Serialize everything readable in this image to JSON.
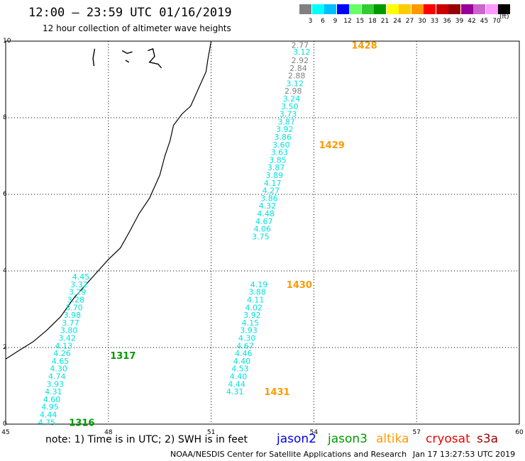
{
  "header": {
    "title": "12:00 — 23:59 UTC 01/16/2019",
    "subtitle": "12 hour collection of altimeter wave heights"
  },
  "colorbar": {
    "unit": "(ft)",
    "steps": [
      {
        "label": "3",
        "color": "#808080"
      },
      {
        "label": "6",
        "color": "#00ffff"
      },
      {
        "label": "9",
        "color": "#00bfff"
      },
      {
        "label": "12",
        "color": "#0000ff"
      },
      {
        "label": "15",
        "color": "#66ff66"
      },
      {
        "label": "18",
        "color": "#33cc33"
      },
      {
        "label": "21",
        "color": "#009900"
      },
      {
        "label": "24",
        "color": "#ffff00"
      },
      {
        "label": "27",
        "color": "#ffcc00"
      },
      {
        "label": "30",
        "color": "#ff9900"
      },
      {
        "label": "33",
        "color": "#ff0000"
      },
      {
        "label": "36",
        "color": "#cc0000"
      },
      {
        "label": "39",
        "color": "#990000"
      },
      {
        "label": "42",
        "color": "#990099"
      },
      {
        "label": "45",
        "color": "#cc66cc"
      },
      {
        "label": "70",
        "color": "#ff99ff"
      },
      {
        "label": "",
        "color": "#000000"
      }
    ]
  },
  "map": {
    "lon_range": [
      45,
      60
    ],
    "lat_range": [
      0,
      10
    ],
    "lon_ticks": [
      "45",
      "48",
      "51",
      "54",
      "57",
      "60"
    ],
    "lat_ticks": [
      "0",
      "2",
      "4",
      "6",
      "8",
      "10"
    ],
    "grid_lon": [
      48,
      51,
      54,
      57
    ],
    "grid_lat": [
      2,
      4,
      6,
      8
    ],
    "coastline": [
      [
        51.0,
        10.0
      ],
      [
        50.9,
        9.5
      ],
      [
        50.85,
        9.2
      ],
      [
        50.7,
        8.9
      ],
      [
        50.5,
        8.5
      ],
      [
        50.4,
        8.3
      ],
      [
        50.15,
        8.1
      ],
      [
        49.9,
        7.8
      ],
      [
        49.8,
        7.4
      ],
      [
        49.65,
        7.0
      ],
      [
        49.5,
        6.5
      ],
      [
        49.2,
        5.9
      ],
      [
        48.9,
        5.5
      ],
      [
        48.6,
        5.0
      ],
      [
        48.35,
        4.6
      ],
      [
        48.0,
        4.3
      ],
      [
        47.7,
        4.0
      ],
      [
        47.4,
        3.7
      ],
      [
        47.0,
        3.3
      ],
      [
        46.6,
        2.8
      ],
      [
        46.2,
        2.45
      ],
      [
        45.8,
        2.15
      ],
      [
        45.35,
        1.9
      ],
      [
        45.0,
        1.7
      ]
    ],
    "islands": [
      [
        [
          47.6,
          9.8
        ],
        [
          47.55,
          9.55
        ],
        [
          47.58,
          9.35
        ]
      ],
      [
        [
          48.4,
          9.75
        ],
        [
          48.55,
          9.68
        ],
        [
          48.7,
          9.72
        ]
      ],
      [
        [
          49.15,
          9.75
        ],
        [
          49.3,
          9.8
        ],
        [
          49.35,
          9.6
        ],
        [
          49.2,
          9.45
        ],
        [
          49.45,
          9.4
        ],
        [
          49.55,
          9.3
        ]
      ],
      [
        [
          48.5,
          9.5
        ],
        [
          48.6,
          9.45
        ]
      ]
    ],
    "passes": [
      {
        "satellite": "altika",
        "time_label": "1428",
        "time_label_pos": [
          55.1,
          9.9
        ],
        "values": [
          {
            "lon": 53.85,
            "lat": 9.9,
            "swh": "2.77",
            "color": "#808080"
          },
          {
            "lon": 53.9,
            "lat": 9.72,
            "swh": "3.12",
            "color": "#00e0e0"
          },
          {
            "lon": 53.85,
            "lat": 9.5,
            "swh": "2.92",
            "color": "#808080"
          },
          {
            "lon": 53.8,
            "lat": 9.3,
            "swh": "2.84",
            "color": "#808080"
          },
          {
            "lon": 53.75,
            "lat": 9.1,
            "swh": "2.88",
            "color": "#808080"
          },
          {
            "lon": 53.7,
            "lat": 8.9,
            "swh": "3.12",
            "color": "#00e0e0"
          },
          {
            "lon": 53.65,
            "lat": 8.7,
            "swh": "2.98",
            "color": "#808080"
          },
          {
            "lon": 53.6,
            "lat": 8.5,
            "swh": "3.24",
            "color": "#00e0e0"
          },
          {
            "lon": 53.55,
            "lat": 8.3,
            "swh": "3.50",
            "color": "#00e0e0"
          },
          {
            "lon": 53.5,
            "lat": 8.1,
            "swh": "3.73",
            "color": "#00e0e0"
          },
          {
            "lon": 53.45,
            "lat": 7.9,
            "swh": "3.87",
            "color": "#00e0e0"
          },
          {
            "lon": 53.4,
            "lat": 7.7,
            "swh": "3.92",
            "color": "#00e0e0"
          },
          {
            "lon": 53.35,
            "lat": 7.5,
            "swh": "3.86",
            "color": "#00e0e0"
          },
          {
            "lon": 53.3,
            "lat": 7.3,
            "swh": "3.60",
            "color": "#00e0e0"
          },
          {
            "lon": 53.25,
            "lat": 7.1,
            "swh": "3.63",
            "color": "#00e0e0"
          },
          {
            "lon": 53.2,
            "lat": 6.9,
            "swh": "3.85",
            "color": "#00e0e0"
          },
          {
            "lon": 53.15,
            "lat": 6.7,
            "swh": "3.87",
            "color": "#00e0e0"
          },
          {
            "lon": 53.1,
            "lat": 6.5,
            "swh": "3.89",
            "color": "#00e0e0"
          },
          {
            "lon": 53.05,
            "lat": 6.3,
            "swh": "4.17",
            "color": "#00e0e0"
          },
          {
            "lon": 53.0,
            "lat": 6.1,
            "swh": "4.27",
            "color": "#00e0e0"
          },
          {
            "lon": 52.95,
            "lat": 5.9,
            "swh": "3.86",
            "color": "#00e0e0"
          },
          {
            "lon": 52.9,
            "lat": 5.7,
            "swh": "4.32",
            "color": "#00e0e0"
          },
          {
            "lon": 52.85,
            "lat": 5.5,
            "swh": "4.48",
            "color": "#00e0e0"
          },
          {
            "lon": 52.8,
            "lat": 5.3,
            "swh": "4.67",
            "color": "#00e0e0"
          },
          {
            "lon": 52.75,
            "lat": 5.1,
            "swh": "4.06",
            "color": "#00e0e0"
          },
          {
            "lon": 52.7,
            "lat": 4.9,
            "swh": "3.75",
            "color": "#00e0e0"
          }
        ]
      },
      {
        "satellite": "altika",
        "time_label": "1429",
        "time_label_pos": [
          54.15,
          7.3
        ],
        "values": []
      },
      {
        "satellite": "altika",
        "time_label": "1430",
        "time_label_pos": [
          53.2,
          3.65
        ],
        "values": [
          {
            "lon": 52.65,
            "lat": 3.65,
            "swh": "4.19",
            "color": "#00e0e0"
          },
          {
            "lon": 52.6,
            "lat": 3.45,
            "swh": "3.88",
            "color": "#00e0e0"
          },
          {
            "lon": 52.55,
            "lat": 3.25,
            "swh": "4.11",
            "color": "#00e0e0"
          },
          {
            "lon": 52.5,
            "lat": 3.05,
            "swh": "4.02",
            "color": "#00e0e0"
          },
          {
            "lon": 52.45,
            "lat": 2.85,
            "swh": "3.92",
            "color": "#00e0e0"
          },
          {
            "lon": 52.4,
            "lat": 2.65,
            "swh": "4.15",
            "color": "#00e0e0"
          },
          {
            "lon": 52.35,
            "lat": 2.45,
            "swh": "3.93",
            "color": "#00e0e0"
          },
          {
            "lon": 52.3,
            "lat": 2.25,
            "swh": "4.30",
            "color": "#00e0e0"
          },
          {
            "lon": 52.25,
            "lat": 2.05,
            "swh": "4.67",
            "color": "#00e0e0"
          },
          {
            "lon": 52.2,
            "lat": 1.85,
            "swh": "4.46",
            "color": "#00e0e0"
          },
          {
            "lon": 52.15,
            "lat": 1.65,
            "swh": "4.40",
            "color": "#00e0e0"
          },
          {
            "lon": 52.1,
            "lat": 1.45,
            "swh": "4.53",
            "color": "#00e0e0"
          },
          {
            "lon": 52.05,
            "lat": 1.25,
            "swh": "4.40",
            "color": "#00e0e0"
          },
          {
            "lon": 52.0,
            "lat": 1.05,
            "swh": "4.44",
            "color": "#00e0e0"
          },
          {
            "lon": 51.95,
            "lat": 0.85,
            "swh": "4.31",
            "color": "#00e0e0"
          }
        ]
      },
      {
        "satellite": "altika",
        "time_label": "1431",
        "time_label_pos": [
          52.55,
          0.85
        ],
        "values": []
      },
      {
        "satellite": "jason3",
        "time_label": "1317",
        "time_label_pos": [
          48.05,
          1.8
        ],
        "values": [
          {
            "lon": 47.45,
            "lat": 3.85,
            "swh": "4.45",
            "color": "#00e0e0"
          },
          {
            "lon": 47.4,
            "lat": 3.65,
            "swh": "3.32",
            "color": "#00e0e0"
          },
          {
            "lon": 47.35,
            "lat": 3.45,
            "swh": "3.29",
            "color": "#00e0e0"
          },
          {
            "lon": 47.3,
            "lat": 3.25,
            "swh": "3.28",
            "color": "#00e0e0"
          },
          {
            "lon": 47.25,
            "lat": 3.05,
            "swh": "3.70",
            "color": "#00e0e0"
          },
          {
            "lon": 47.2,
            "lat": 2.85,
            "swh": "3.98",
            "color": "#00e0e0"
          },
          {
            "lon": 47.15,
            "lat": 2.65,
            "swh": "3.77",
            "color": "#00e0e0"
          },
          {
            "lon": 47.1,
            "lat": 2.45,
            "swh": "3.80",
            "color": "#00e0e0"
          },
          {
            "lon": 47.05,
            "lat": 2.25,
            "swh": "3.42",
            "color": "#00e0e0"
          },
          {
            "lon": 46.95,
            "lat": 2.05,
            "swh": "4.13",
            "color": "#00e0e0"
          },
          {
            "lon": 46.9,
            "lat": 1.85,
            "swh": "4.26",
            "color": "#00e0e0"
          },
          {
            "lon": 46.85,
            "lat": 1.65,
            "swh": "4.65",
            "color": "#00e0e0"
          },
          {
            "lon": 46.8,
            "lat": 1.45,
            "swh": "4.30",
            "color": "#00e0e0"
          },
          {
            "lon": 46.75,
            "lat": 1.25,
            "swh": "4.74",
            "color": "#00e0e0"
          },
          {
            "lon": 46.7,
            "lat": 1.05,
            "swh": "3.93",
            "color": "#00e0e0"
          },
          {
            "lon": 46.65,
            "lat": 0.85,
            "swh": "4.31",
            "color": "#00e0e0"
          },
          {
            "lon": 46.6,
            "lat": 0.65,
            "swh": "4.60",
            "color": "#00e0e0"
          },
          {
            "lon": 46.55,
            "lat": 0.45,
            "swh": "4.95",
            "color": "#00e0e0"
          },
          {
            "lon": 46.5,
            "lat": 0.25,
            "swh": "4.44",
            "color": "#00e0e0"
          },
          {
            "lon": 46.45,
            "lat": 0.05,
            "swh": "4.75",
            "color": "#00e0e0"
          }
        ]
      },
      {
        "satellite": "jason3",
        "time_label": "1316",
        "time_label_pos": [
          46.85,
          0.05
        ],
        "values": []
      }
    ]
  },
  "footer": {
    "note": "note:  1) Time is in UTC;  2) SWH is in feet",
    "legend": [
      {
        "name": "jason2",
        "color": "#0000ee"
      },
      {
        "name": "jason3",
        "color": "#009900"
      },
      {
        "name": "altika",
        "color": "#ff9900"
      },
      {
        "name": "cryosat",
        "color": "#ee0000"
      },
      {
        "name": "s3a",
        "color": "#990000"
      }
    ],
    "credit": "NOAA/NESDIS Center for Satellite Applications and Research",
    "timestamp": "Jan 17 13:27:53 UTC 2019"
  },
  "label_colors": {
    "jason3": "#009900",
    "altika": "#ff9900"
  }
}
